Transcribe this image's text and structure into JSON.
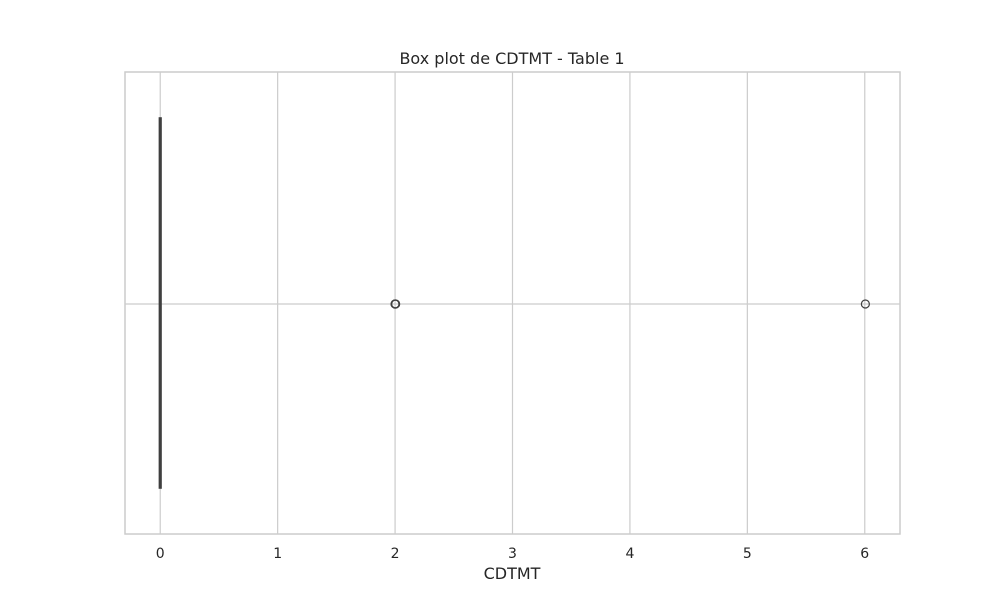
{
  "chart_data": {
    "type": "box",
    "orientation": "horizontal",
    "title": "Box plot de CDTMT - Table 1",
    "xlabel": "CDTMT",
    "ylabel": "",
    "xlim": [
      -0.3,
      6.3
    ],
    "xticks": [
      0,
      1,
      2,
      3,
      4,
      5,
      6
    ],
    "grid": true,
    "box": {
      "q1": 0,
      "median": 0,
      "q3": 0,
      "whisker_low": 0,
      "whisker_high": 0
    },
    "outliers": [
      2,
      2,
      2,
      6
    ]
  },
  "colors": {
    "frame": "#cccccc",
    "grid": "#cccccc",
    "box_line": "#3f3f3f",
    "text": "#262626"
  }
}
